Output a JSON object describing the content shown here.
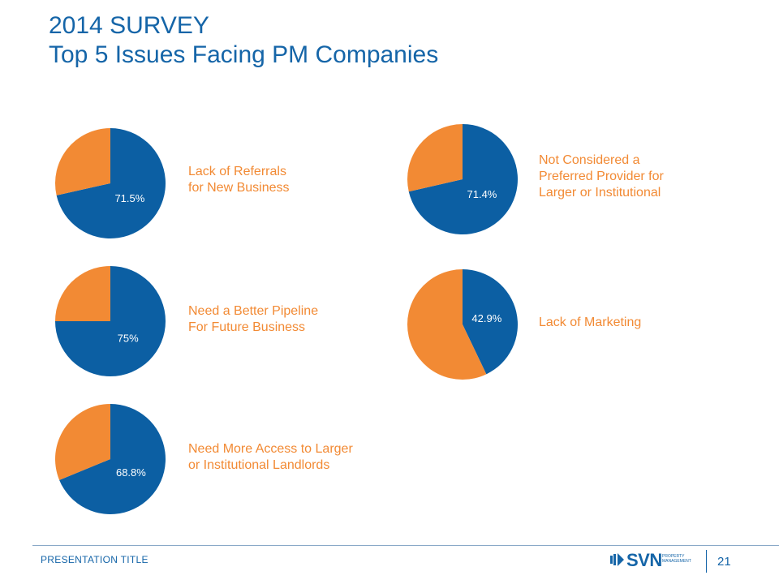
{
  "title": {
    "line1": "2014 SURVEY",
    "line2": "Top 5 Issues Facing PM Companies"
  },
  "colors": {
    "title": "#1565a8",
    "blue_slice": "#0c5fa3",
    "orange_slice": "#f28a34",
    "label_text": "#f28a34"
  },
  "chart_data": [
    {
      "type": "pie",
      "slices": [
        {
          "value": 71.5,
          "label": "71.5%",
          "color": "#0c5fa3"
        },
        {
          "value": 28.5,
          "label": "",
          "color": "#f28a34"
        }
      ],
      "caption_lines": [
        "Lack of Referrals",
        "for New Business"
      ]
    },
    {
      "type": "pie",
      "slices": [
        {
          "value": 75,
          "label": "75%",
          "color": "#0c5fa3"
        },
        {
          "value": 25,
          "label": "",
          "color": "#f28a34"
        }
      ],
      "caption_lines": [
        "Need a Better Pipeline",
        "For Future Business"
      ]
    },
    {
      "type": "pie",
      "slices": [
        {
          "value": 68.8,
          "label": "68.8%",
          "color": "#0c5fa3"
        },
        {
          "value": 31.2,
          "label": "",
          "color": "#f28a34"
        }
      ],
      "caption_lines": [
        "Need More Access to Larger",
        "or Institutional Landlords"
      ]
    },
    {
      "type": "pie",
      "slices": [
        {
          "value": 71.4,
          "label": "71.4%",
          "color": "#0c5fa3"
        },
        {
          "value": 28.6,
          "label": "",
          "color": "#f28a34"
        }
      ],
      "caption_lines": [
        "Not Considered a",
        "Preferred Provider for",
        "Larger or Institutional"
      ]
    },
    {
      "type": "pie",
      "slices": [
        {
          "value": 42.9,
          "label": "42.9%",
          "color": "#0c5fa3"
        },
        {
          "value": 57.1,
          "label": "",
          "color": "#f28a34"
        }
      ],
      "caption_lines": [
        "Lack of Marketing"
      ]
    }
  ],
  "footer": {
    "presentation_title": "PRESENTATION TITLE",
    "logo_text": "SVN",
    "logo_sub_1": "PROPERTY",
    "logo_sub_2": "MANAGEMENT",
    "page_number": "21"
  }
}
